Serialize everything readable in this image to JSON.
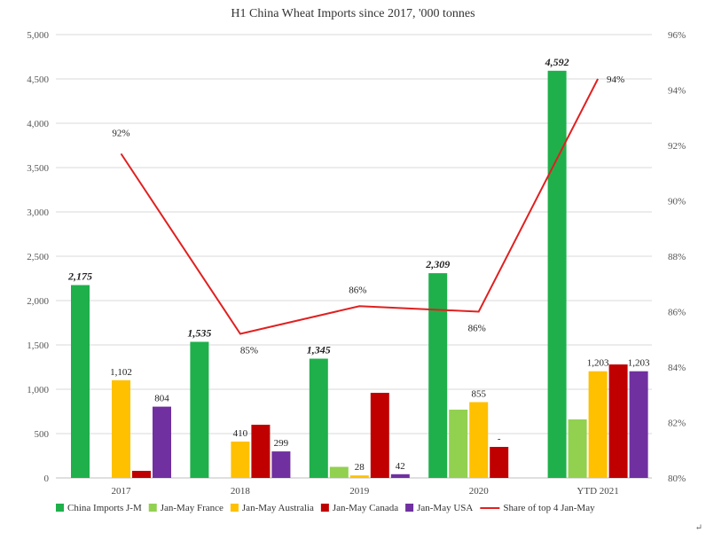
{
  "chart_data": {
    "type": "bar",
    "title": "H1 China Wheat Imports since 2017, '000 tonnes",
    "categories": [
      "2017",
      "2018",
      "2019",
      "2020",
      "YTD 2021"
    ],
    "ylim": [
      0,
      5000
    ],
    "y_ticks": [
      "0",
      "500",
      "1,000",
      "1,500",
      "2,000",
      "2,500",
      "3,000",
      "3,500",
      "4,000",
      "4,500",
      "5,000"
    ],
    "y2lim": [
      80,
      96
    ],
    "y2_ticks": [
      "80%",
      "82%",
      "84%",
      "86%",
      "88%",
      "90%",
      "92%",
      "94%",
      "96%"
    ],
    "grid": true,
    "legend_position": "bottom",
    "series": [
      {
        "name": "China Imports J-M",
        "color": "#1fb04b",
        "values": [
          2175,
          1535,
          1345,
          2309,
          4592
        ],
        "labels": [
          "2,175",
          "1,535",
          "1,345",
          "2,309",
          "4,592"
        ],
        "label_style": "bold-italic"
      },
      {
        "name": "Jan-May France",
        "color": "#92d050",
        "values": [
          0,
          0,
          125,
          770,
          660
        ],
        "labels": [
          "",
          "",
          "",
          "",
          ""
        ]
      },
      {
        "name": "Jan-May Australia",
        "color": "#ffc000",
        "values": [
          1102,
          410,
          28,
          855,
          1203
        ],
        "labels": [
          "1,102",
          "410",
          "28",
          "855",
          "1,203"
        ]
      },
      {
        "name": "Jan-May Canada",
        "color": "#c00000",
        "values": [
          80,
          600,
          960,
          350,
          1280
        ],
        "labels": [
          "",
          "",
          "",
          "-",
          ""
        ]
      },
      {
        "name": "Jan-May USA",
        "color": "#7030a0",
        "values": [
          804,
          299,
          42,
          0,
          1203
        ],
        "labels": [
          "804",
          "299",
          "42",
          "",
          "1,203"
        ]
      }
    ],
    "line_series": {
      "name": "Share of top 4 Jan-May",
      "color": "#e02020",
      "values": [
        91.7,
        85.2,
        86.2,
        86.0,
        94.4
      ],
      "labels": [
        "92%",
        "85%",
        "86%",
        "86%",
        "94%"
      ],
      "axis": "right"
    },
    "corner_mark": "↵"
  }
}
